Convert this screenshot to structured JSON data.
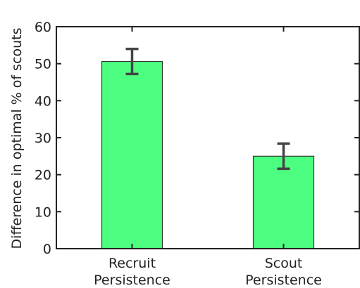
{
  "chart_data": {
    "type": "bar",
    "ylabel": "Difference in optimal % of scouts",
    "xlabel": "",
    "ylim": [
      0,
      60
    ],
    "yticks": [
      0,
      10,
      20,
      30,
      40,
      50,
      60
    ],
    "categories": [
      [
        "Recruit",
        "Persistence"
      ],
      [
        "Scout",
        "Persistence"
      ]
    ],
    "values": [
      50.6,
      25.0
    ],
    "error": [
      3.4,
      3.4
    ],
    "bar_color": "#4dff80",
    "error_color": "#444444",
    "grid": false
  }
}
